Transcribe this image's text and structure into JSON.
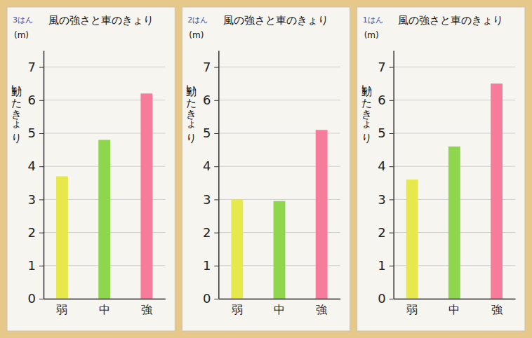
{
  "chart_data": [
    {
      "type": "bar",
      "title": "風の強さと車のきょり",
      "subtitle": "3はん",
      "y_label": "動いたきょり",
      "y_unit": "(m)",
      "categories": [
        "弱",
        "中",
        "強"
      ],
      "values": [
        3.7,
        4.8,
        6.2
      ],
      "colors": [
        "#e6e84c",
        "#8ed64e",
        "#f77c9c"
      ],
      "ylim": [
        0,
        7.5
      ],
      "yticks": [
        0,
        1,
        2,
        3,
        4,
        5,
        6,
        7
      ],
      "grid": true
    },
    {
      "type": "bar",
      "title": "風の強さと車のきょり",
      "subtitle": "2はん",
      "y_label": "動いたきょり",
      "y_unit": "(m)",
      "categories": [
        "弱",
        "中",
        "強"
      ],
      "values": [
        3.0,
        2.95,
        5.1
      ],
      "colors": [
        "#e6e84c",
        "#8ed64e",
        "#f77c9c"
      ],
      "ylim": [
        0,
        7.5
      ],
      "yticks": [
        0,
        1,
        2,
        3,
        4,
        5,
        6,
        7
      ],
      "grid": true
    },
    {
      "type": "bar",
      "title": "風の強さと車のきょり",
      "subtitle": "1はん",
      "y_label": "動いたきょり",
      "y_unit": "(m)",
      "categories": [
        "弱",
        "中",
        "強"
      ],
      "values": [
        3.6,
        4.6,
        6.5
      ],
      "colors": [
        "#e6e84c",
        "#8ed64e",
        "#f77c9c"
      ],
      "ylim": [
        0,
        7.5
      ],
      "yticks": [
        0,
        1,
        2,
        3,
        4,
        5,
        6,
        7
      ],
      "grid": true
    }
  ]
}
